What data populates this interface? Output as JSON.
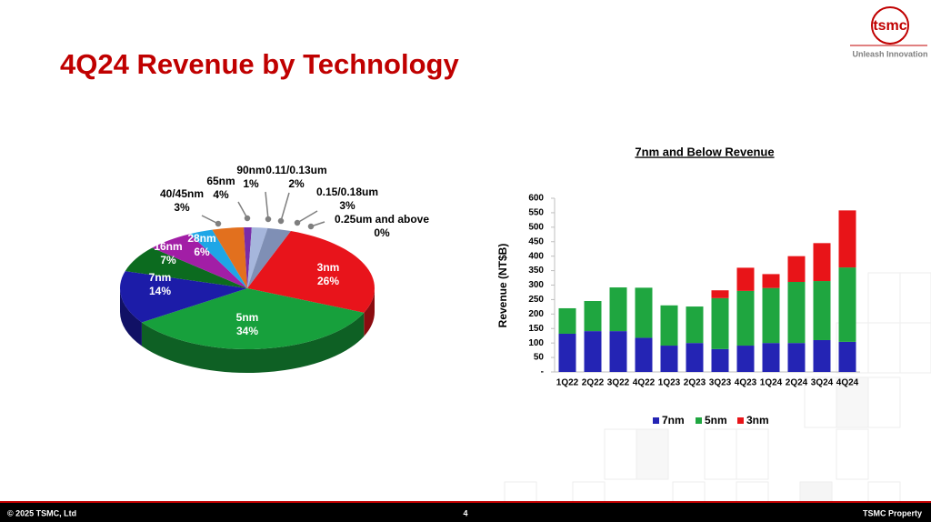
{
  "slide": {
    "title": "4Q24 Revenue by Technology",
    "logo": "tsmc",
    "tagline": "Unleash Innovation",
    "copyright": "© 2025 TSMC, Ltd",
    "page_number": "4",
    "property": "TSMC Property"
  },
  "chart_data": [
    {
      "type": "pie",
      "three_d": true,
      "categories": [
        "3nm",
        "5nm",
        "7nm",
        "16nm",
        "28nm",
        "40/45nm",
        "65nm",
        "90nm",
        "0.11/0.13um",
        "0.15/0.18um",
        "0.25um and above"
      ],
      "values": [
        26,
        34,
        14,
        7,
        6,
        3,
        4,
        1,
        2,
        3,
        0
      ],
      "value_labels": [
        "26%",
        "34%",
        "14%",
        "7%",
        "6%",
        "3%",
        "4%",
        "1%",
        "2%",
        "3%",
        "0%"
      ],
      "colors": [
        "#e8141b",
        "#17a03c",
        "#1c1ca8",
        "#0c6b1f",
        "#a21ea6",
        "#1ea6e6",
        "#e2701e",
        "#7a2ca8",
        "#a6b6dc",
        "#7f8fb5",
        "#8a1e1e"
      ]
    },
    {
      "type": "bar",
      "stacked": true,
      "title": "7nm and Below Revenue",
      "y_label": "Revenue (NT$B)",
      "categories": [
        "1Q22",
        "2Q22",
        "3Q22",
        "4Q22",
        "1Q23",
        "2Q23",
        "3Q23",
        "4Q23",
        "1Q24",
        "2Q24",
        "3Q24",
        "4Q24"
      ],
      "series": [
        {
          "name": "7nm",
          "color": "#2424b4",
          "values": [
            132,
            141,
            141,
            118,
            91,
            100,
            79,
            91,
            100,
            100,
            110,
            104
          ]
        },
        {
          "name": "5nm",
          "color": "#1fa640",
          "values": [
            88,
            104,
            151,
            173,
            139,
            126,
            176,
            189,
            190,
            211,
            204,
            257
          ]
        },
        {
          "name": "3nm",
          "color": "#e81418",
          "values": [
            null,
            null,
            null,
            null,
            null,
            null,
            27,
            80,
            48,
            89,
            131,
            197
          ]
        }
      ],
      "ylim": [
        0,
        600
      ],
      "yticks": [
        {
          "value": 0,
          "label": "-"
        },
        50,
        100,
        150,
        200,
        250,
        300,
        350,
        400,
        450,
        500,
        550,
        600
      ],
      "grid": false,
      "legend": "bottom"
    }
  ]
}
